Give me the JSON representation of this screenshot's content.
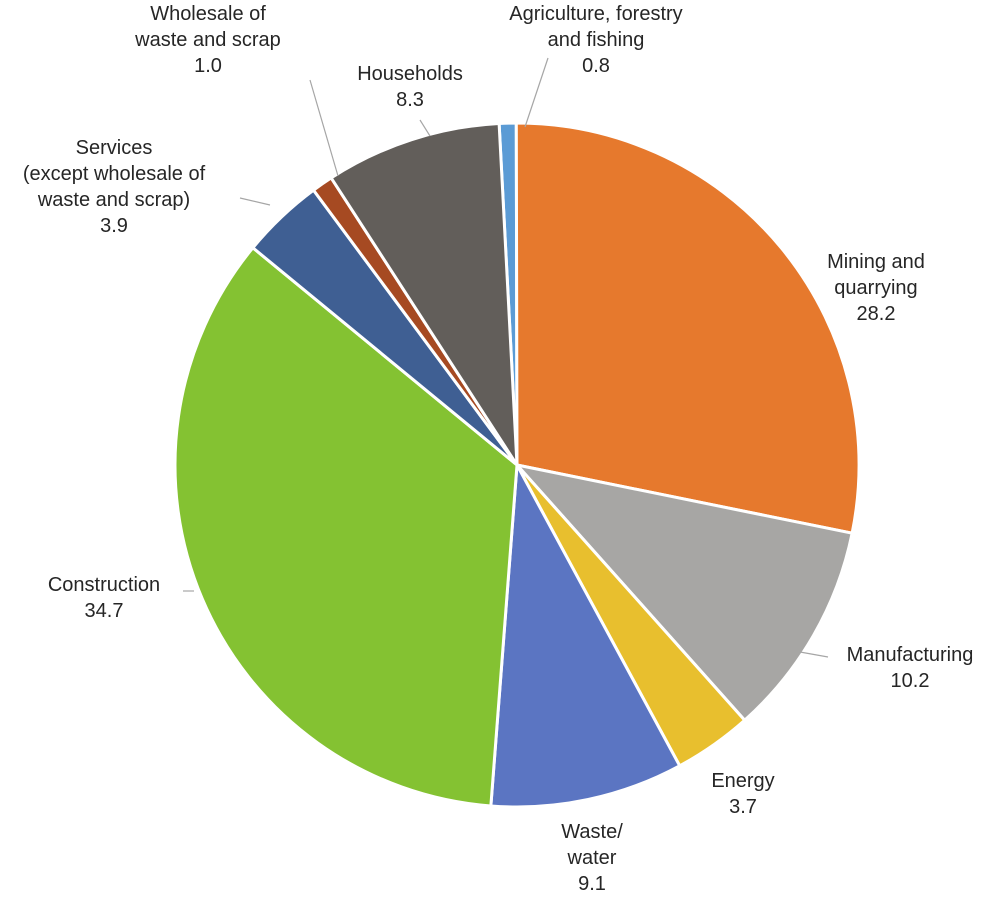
{
  "chart_data": {
    "type": "pie",
    "title": "",
    "start_angle_deg": -3,
    "direction": "clockwise",
    "slices": [
      {
        "name": "Agriculture, forestry and fishing",
        "label_lines": [
          "Agriculture, forestry",
          "and fishing"
        ],
        "value": 0.8,
        "value_label": "0.8",
        "color": "#5b9bd5"
      },
      {
        "name": "Mining and quarrying",
        "label_lines": [
          "Mining and",
          "quarrying"
        ],
        "value": 28.2,
        "value_label": "28.2",
        "color": "#e6792d"
      },
      {
        "name": "Manufacturing",
        "label_lines": [
          "Manufacturing"
        ],
        "value": 10.2,
        "value_label": "10.2",
        "color": "#a7a6a4"
      },
      {
        "name": "Energy",
        "label_lines": [
          "Energy"
        ],
        "value": 3.7,
        "value_label": "3.7",
        "color": "#e8bf2e"
      },
      {
        "name": "Waste/ water",
        "label_lines": [
          "Waste/",
          "water"
        ],
        "value": 9.1,
        "value_label": "9.1",
        "color": "#5b75c2"
      },
      {
        "name": "Construction",
        "label_lines": [
          "Construction"
        ],
        "value": 34.7,
        "value_label": "34.7",
        "color": "#84c232"
      },
      {
        "name": "Services (except wholesale of waste and scrap)",
        "label_lines": [
          "Services",
          "(except wholesale of",
          "waste and scrap)"
        ],
        "value": 3.9,
        "value_label": "3.9",
        "color": "#3f5f93"
      },
      {
        "name": "Wholesale of waste and scrap",
        "label_lines": [
          "Wholesale of",
          "waste and scrap"
        ],
        "value": 1.0,
        "value_label": "1.0",
        "color": "#a64a22"
      },
      {
        "name": "Households",
        "label_lines": [
          "Households"
        ],
        "value": 8.3,
        "value_label": "8.3",
        "color": "#625e5a"
      }
    ]
  }
}
